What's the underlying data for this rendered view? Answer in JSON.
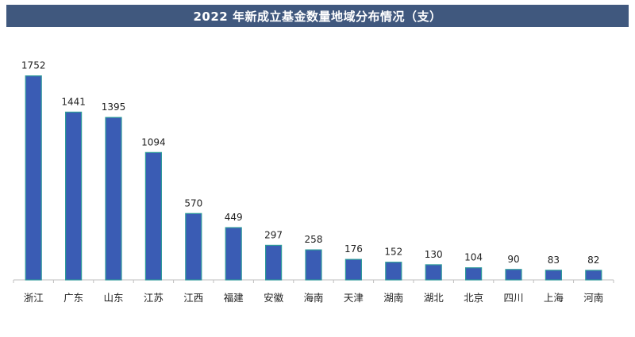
{
  "chart_data": {
    "type": "bar",
    "title": "2022 年新成立基金数量地域分布情况（支）",
    "categories": [
      "浙江",
      "广东",
      "山东",
      "江苏",
      "江西",
      "福建",
      "安徽",
      "海南",
      "天津",
      "湖南",
      "湖北",
      "北京",
      "四川",
      "上海",
      "河南"
    ],
    "values": [
      1752,
      1441,
      1395,
      1094,
      570,
      449,
      297,
      258,
      176,
      152,
      130,
      104,
      90,
      83,
      82
    ],
    "xlabel": "",
    "ylabel": "",
    "ylim": [
      0,
      1900
    ],
    "grid": false,
    "bar_color": "#3a5cb4",
    "bar_edge_color": "#2e9a9a"
  }
}
